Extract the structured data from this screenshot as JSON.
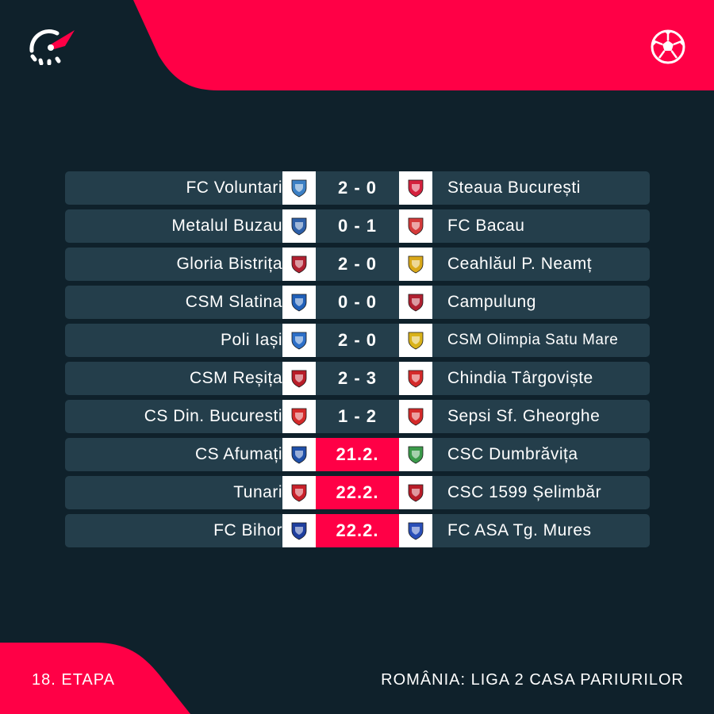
{
  "brand": {
    "accent": "#ff0046",
    "background": "#0f212b",
    "row": "#243e4b"
  },
  "icons": {
    "logo": "flashscore-logo",
    "sport": "football-icon"
  },
  "matches": [
    {
      "home": "FC Voluntari",
      "score": "2 - 0",
      "away": "Steaua București",
      "home_color": "#3b7fc4",
      "away_color": "#d4213d",
      "pending": false
    },
    {
      "home": "Metalul Buzau",
      "score": "0 - 1",
      "away": "FC Bacau",
      "home_color": "#2d5fa8",
      "away_color": "#d43a3a",
      "pending": false
    },
    {
      "home": "Gloria Bistrița",
      "score": "2 - 0",
      "away": "Ceahlăul P. Neamț",
      "home_color": "#b02030",
      "away_color": "#d9a81a",
      "pending": false
    },
    {
      "home": "CSM Slatina",
      "score": "0 - 0",
      "away": "Campulung",
      "home_color": "#1f5fb8",
      "away_color": "#b02030",
      "pending": false
    },
    {
      "home": "Poli Iași",
      "score": "2 - 0",
      "away": "CSM Olimpia Satu Mare",
      "home_color": "#2d6fc8",
      "away_color": "#d9b21a",
      "pending": false,
      "away_small": true
    },
    {
      "home": "CSM Reșița",
      "score": "2 - 3",
      "away": "Chindia Târgoviște",
      "home_color": "#b81c28",
      "away_color": "#d42a2a",
      "pending": false
    },
    {
      "home": "CS Din. Bucuresti",
      "score": "1 - 2",
      "away": "Sepsi Sf. Gheorghe",
      "home_color": "#d42a2a",
      "away_color": "#d42a2a",
      "pending": false
    },
    {
      "home": "CS Afumați",
      "score": "21.2.",
      "away": "CSC Dumbrăvița",
      "home_color": "#1f4fa8",
      "away_color": "#3b9a4a",
      "pending": true
    },
    {
      "home": "Tunari",
      "score": "22.2.",
      "away": "CSC 1599 Șelimbăr",
      "home_color": "#c8202a",
      "away_color": "#b81c28",
      "pending": true
    },
    {
      "home": "FC Bihor",
      "score": "22.2.",
      "away": "FC ASA Tg. Mures",
      "home_color": "#1f3f9f",
      "away_color": "#2a4fb8",
      "pending": true
    }
  ],
  "footer": {
    "round": "18. ETAPA",
    "league": "ROMÂNIA: LIGA 2 CASA PARIURILOR"
  }
}
